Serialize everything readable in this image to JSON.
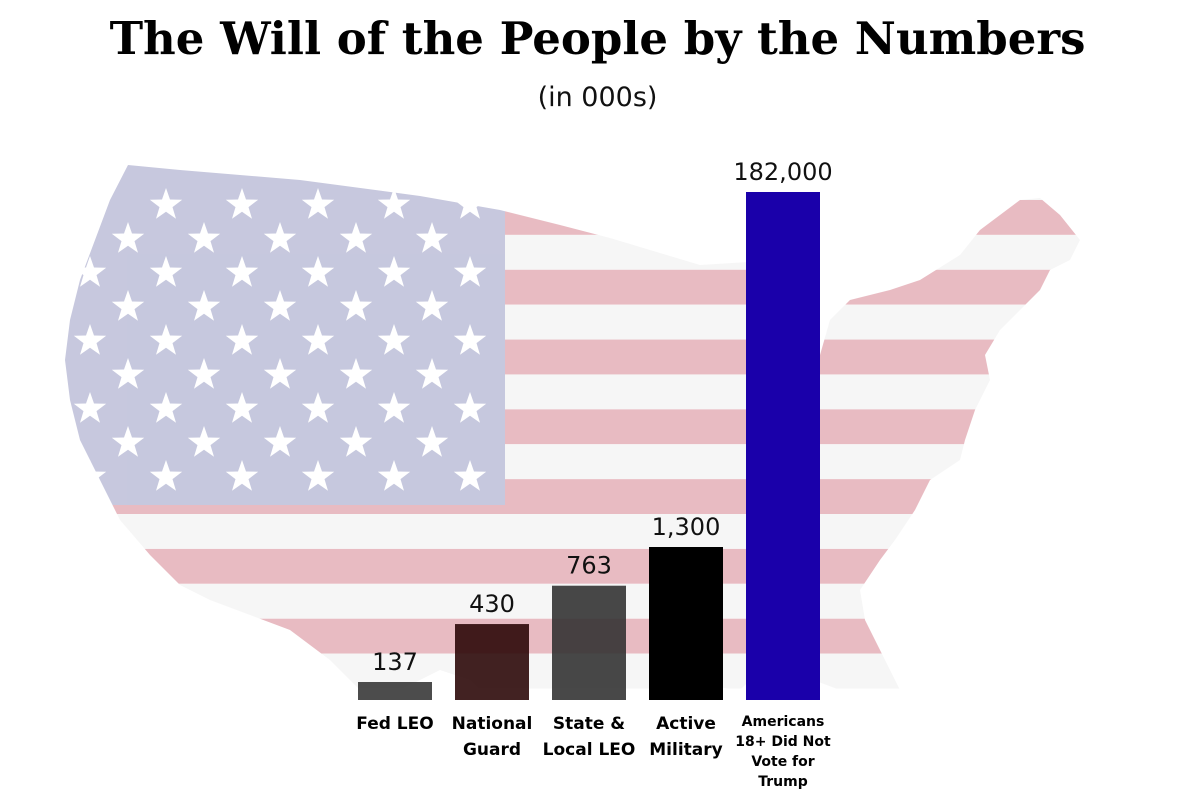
{
  "title": "The Will of the People by the Numbers",
  "subtitle": "(in 000s)",
  "background": {
    "image": "us-flag-map",
    "colors": {
      "canton": "#c4c6dd",
      "stripe_red": "#e7b8bf",
      "stripe_white": "#f6f6f6",
      "star": "#ffffff"
    }
  },
  "chart_data": {
    "type": "bar",
    "title": "The Will of the People by the Numbers",
    "subtitle": "(in 000s)",
    "categories": [
      "Fed LEO",
      "National Guard",
      "State & Local LEO",
      "Active Military",
      "Americans 18+ Did Not Vote for Trump"
    ],
    "category_lines": [
      [
        "Fed LEO"
      ],
      [
        "National",
        "Guard"
      ],
      [
        "State &",
        "Local LEO"
      ],
      [
        "Active",
        "Military"
      ],
      [
        "Americans",
        "18+ Did Not",
        "Vote for",
        "Trump"
      ]
    ],
    "values": [
      137,
      430,
      763,
      1300,
      182000
    ],
    "value_labels": [
      "137",
      "430",
      "763",
      "1,300",
      "182,000"
    ],
    "bar_colors": [
      "#333333",
      "#280303",
      "#2f2f2f",
      "#000000",
      "#1a00aa"
    ],
    "xlabel": "",
    "ylabel": "",
    "grid": false,
    "legend": "none",
    "note": "bar heights are not drawn to linear scale in the original"
  }
}
